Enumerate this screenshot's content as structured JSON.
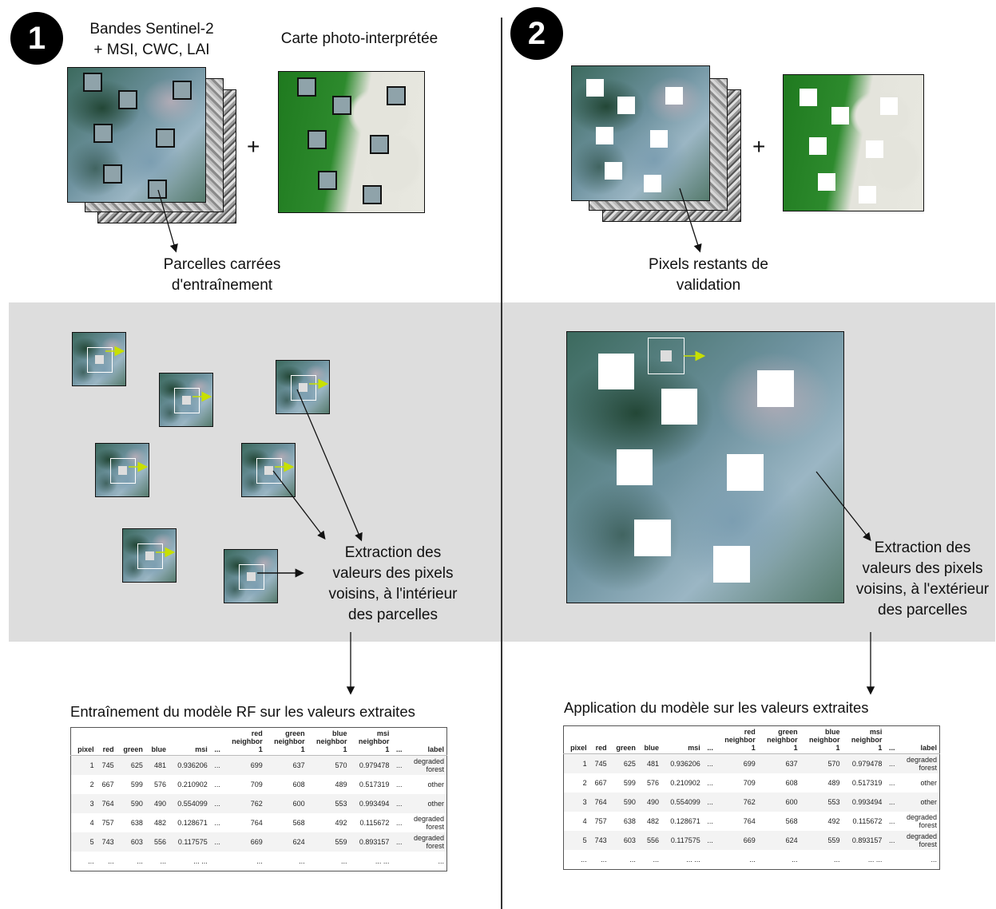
{
  "badges": {
    "one": "1",
    "two": "2"
  },
  "panel1": {
    "bands_label_line1": "Bandes Sentinel-2",
    "bands_label_line2": "+ MSI, CWC, LAI",
    "map_label": "Carte photo-interprétée",
    "plus": "+",
    "plots_label_line1": "Parcelles carrées",
    "plots_label_line2": "d'entraînement",
    "extract_line1": "Extraction des",
    "extract_line2": "valeurs des pixels",
    "extract_line3": "voisins, à l'intérieur",
    "extract_line4": "des parcelles",
    "table_title": "Entraînement du modèle RF sur les valeurs extraites"
  },
  "panel2": {
    "plus": "+",
    "pixels_label_line1": "Pixels restants de",
    "pixels_label_line2": "validation",
    "extract_line1": "Extraction des",
    "extract_line2": "valeurs des pixels",
    "extract_line3": "voisins, à l'extérieur",
    "extract_line4": "des parcelles",
    "table_title": "Application du modèle sur les valeurs extraites"
  },
  "table": {
    "headers": [
      "pixel",
      "red",
      "green",
      "blue",
      "msi",
      "...",
      "red\nneighbor\n1",
      "green\nneighbor\n1",
      "blue\nneighbor\n1",
      "msi\nneighbor\n1",
      "...",
      "label"
    ],
    "rows": [
      [
        "1",
        "745",
        "625",
        "481",
        "0.936206",
        "...",
        "699",
        "637",
        "570",
        "0.979478",
        "...",
        "degraded\nforest"
      ],
      [
        "2",
        "667",
        "599",
        "576",
        "0.210902",
        "...",
        "709",
        "608",
        "489",
        "0.517319",
        "...",
        "other"
      ],
      [
        "3",
        "764",
        "590",
        "490",
        "0.554099",
        "...",
        "762",
        "600",
        "553",
        "0.993494",
        "...",
        "other"
      ],
      [
        "4",
        "757",
        "638",
        "482",
        "0.128671",
        "...",
        "764",
        "568",
        "492",
        "0.115672",
        "...",
        "degraded\nforest"
      ],
      [
        "5",
        "743",
        "603",
        "556",
        "0.117575",
        "...",
        "669",
        "624",
        "559",
        "0.893157",
        "...",
        "degraded\nforest"
      ],
      [
        "...",
        "...",
        "...",
        "...",
        "... ...",
        "",
        "...",
        "...",
        "...",
        "... ...",
        "",
        "..."
      ]
    ]
  },
  "colors": {
    "band": "#dddddd",
    "arrow_green": "#c8e000",
    "forest": "#1f7a1f",
    "plot_fill": "#8fa3aa"
  }
}
